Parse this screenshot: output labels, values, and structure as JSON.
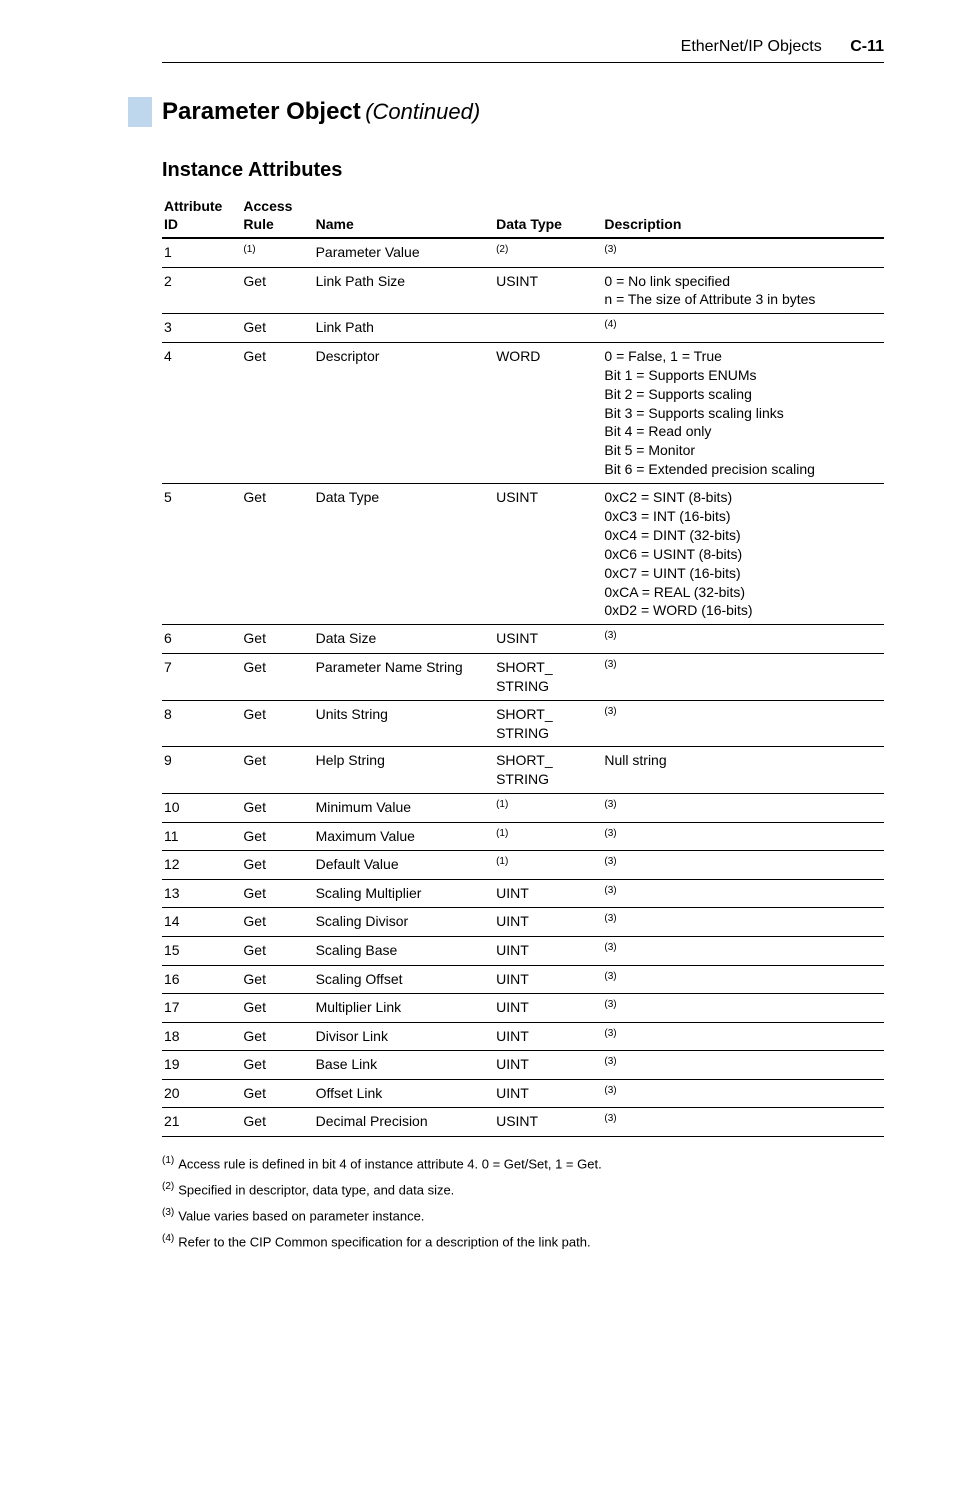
{
  "header": {
    "chapter": "EtherNet/IP Objects",
    "page": "C-11"
  },
  "section": {
    "title": "Parameter Object",
    "continued": "(Continued)"
  },
  "subheading": "Instance Attributes",
  "table": {
    "headers": {
      "id_l1": "Attribute",
      "id_l2": "ID",
      "rule_l1": "Access",
      "rule_l2": "Rule",
      "name": "Name",
      "type": "Data Type",
      "desc": "Description"
    },
    "rows": [
      {
        "id": "1",
        "rule_sup": "(1)",
        "name": "Parameter Value",
        "type_sup": "(2)",
        "desc_sup": "(3)"
      },
      {
        "id": "2",
        "rule": "Get",
        "name": "Link Path Size",
        "type": "USINT",
        "desc": "0 = No link specified\nn = The size of Attribute 3 in bytes"
      },
      {
        "id": "3",
        "rule": "Get",
        "name": "Link Path",
        "type": "",
        "desc_sup": "(4)"
      },
      {
        "id": "4",
        "rule": "Get",
        "name": "Descriptor",
        "type": "WORD",
        "desc": "0 = False, 1 = True\nBit 1 = Supports ENUMs\nBit 2 = Supports scaling\nBit 3 = Supports scaling links\nBit 4 = Read only\nBit 5 = Monitor\nBit 6 = Extended precision scaling"
      },
      {
        "id": "5",
        "rule": "Get",
        "name": "Data Type",
        "type": "USINT",
        "desc": "0xC2 = SINT (8-bits)\n0xC3 = INT (16-bits)\n0xC4 = DINT (32-bits)\n0xC6 = USINT (8-bits)\n0xC7 = UINT (16-bits)\n0xCA = REAL (32-bits)\n0xD2 = WORD (16-bits)"
      },
      {
        "id": "6",
        "rule": "Get",
        "name": "Data Size",
        "type": "USINT",
        "desc_sup": "(3)"
      },
      {
        "id": "7",
        "rule": "Get",
        "name": "Parameter Name String",
        "type": "SHORT_\n  STRING",
        "desc_sup": "(3)"
      },
      {
        "id": "8",
        "rule": "Get",
        "name": "Units String",
        "type": "SHORT_\n  STRING",
        "desc_sup": "(3)"
      },
      {
        "id": "9",
        "rule": "Get",
        "name": "Help String",
        "type": "SHORT_\n  STRING",
        "desc": "Null string"
      },
      {
        "id": "10",
        "rule": "Get",
        "name": "Minimum Value",
        "type_sup": "(1)",
        "desc_sup": "(3)"
      },
      {
        "id": "11",
        "rule": "Get",
        "name": "Maximum Value",
        "type_sup": "(1)",
        "desc_sup": "(3)"
      },
      {
        "id": "12",
        "rule": "Get",
        "name": "Default Value",
        "type_sup": "(1)",
        "desc_sup": "(3)"
      },
      {
        "id": "13",
        "rule": "Get",
        "name": "Scaling Multiplier",
        "type": "UINT",
        "desc_sup": "(3)"
      },
      {
        "id": "14",
        "rule": "Get",
        "name": "Scaling Divisor",
        "type": "UINT",
        "desc_sup": "(3)"
      },
      {
        "id": "15",
        "rule": "Get",
        "name": "Scaling Base",
        "type": "UINT",
        "desc_sup": "(3)"
      },
      {
        "id": "16",
        "rule": "Get",
        "name": "Scaling Offset",
        "type": "UINT",
        "desc_sup": "(3)"
      },
      {
        "id": "17",
        "rule": "Get",
        "name": "Multiplier Link",
        "type": "UINT",
        "desc_sup": "(3)"
      },
      {
        "id": "18",
        "rule": "Get",
        "name": "Divisor Link",
        "type": "UINT",
        "desc_sup": "(3)"
      },
      {
        "id": "19",
        "rule": "Get",
        "name": "Base Link",
        "type": "UINT",
        "desc_sup": "(3)"
      },
      {
        "id": "20",
        "rule": "Get",
        "name": "Offset Link",
        "type": "UINT",
        "desc_sup": "(3)"
      },
      {
        "id": "21",
        "rule": "Get",
        "name": "Decimal Precision",
        "type": "USINT",
        "desc_sup": "(3)"
      }
    ]
  },
  "footnotes": [
    {
      "num": "(1)",
      "text": "Access rule is defined in bit 4 of instance attribute 4. 0 = Get/Set, 1 = Get."
    },
    {
      "num": "(2)",
      "text": "Specified in descriptor, data type, and data size."
    },
    {
      "num": "(3)",
      "text": "Value varies based on parameter instance."
    },
    {
      "num": "(4)",
      "text": "Refer to the CIP Common specification for a description of the link path."
    }
  ]
}
